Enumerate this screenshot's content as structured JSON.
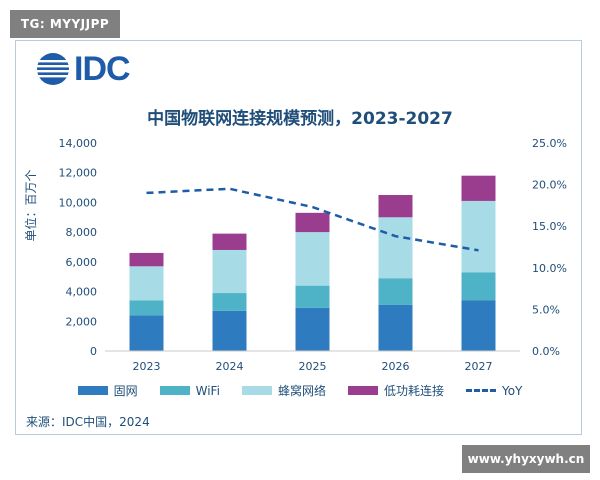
{
  "watermarks": {
    "top_left": "TG: MYYJJPP",
    "bottom_right": "www.yhyxywh.cn"
  },
  "logo": {
    "text": "IDC"
  },
  "source": "来源：IDC中国，2024",
  "colors": {
    "fixed": "#2f7bbf",
    "wifi": "#4fb3c8",
    "cellular": "#a7dbe6",
    "lpwa": "#9b3d8f",
    "yoy": "#1e5ba8",
    "text": "#1f4e79"
  },
  "chart_data": {
    "type": "bar",
    "stacked": true,
    "title": "中国物联网连接规模预测，2023-2027",
    "ylabel": "单位：百万个",
    "categories": [
      "2023",
      "2024",
      "2025",
      "2026",
      "2027"
    ],
    "ylim": [
      0,
      14000
    ],
    "yticks": [
      "0",
      "2,000",
      "4,000",
      "6,000",
      "8,000",
      "10,000",
      "12,000",
      "14,000"
    ],
    "y2lim": [
      0,
      25
    ],
    "y2ticks": [
      "0.0%",
      "5.0%",
      "10.0%",
      "15.0%",
      "20.0%",
      "25.0%"
    ],
    "series": [
      {
        "name": "固网",
        "values": [
          2400,
          2700,
          2900,
          3100,
          3400
        ]
      },
      {
        "name": "WiFi",
        "values": [
          1000,
          1200,
          1500,
          1800,
          1900
        ]
      },
      {
        "name": "蜂窝网络",
        "values": [
          2300,
          2900,
          3600,
          4100,
          4800
        ]
      },
      {
        "name": "低功耗连接",
        "values": [
          900,
          1100,
          1300,
          1500,
          1700
        ]
      }
    ],
    "line_series": {
      "name": "YoY",
      "axis": "right",
      "values": [
        19.0,
        19.5,
        17.3,
        13.8,
        12.1
      ]
    },
    "legend_placement": "bottom",
    "grid": false
  }
}
